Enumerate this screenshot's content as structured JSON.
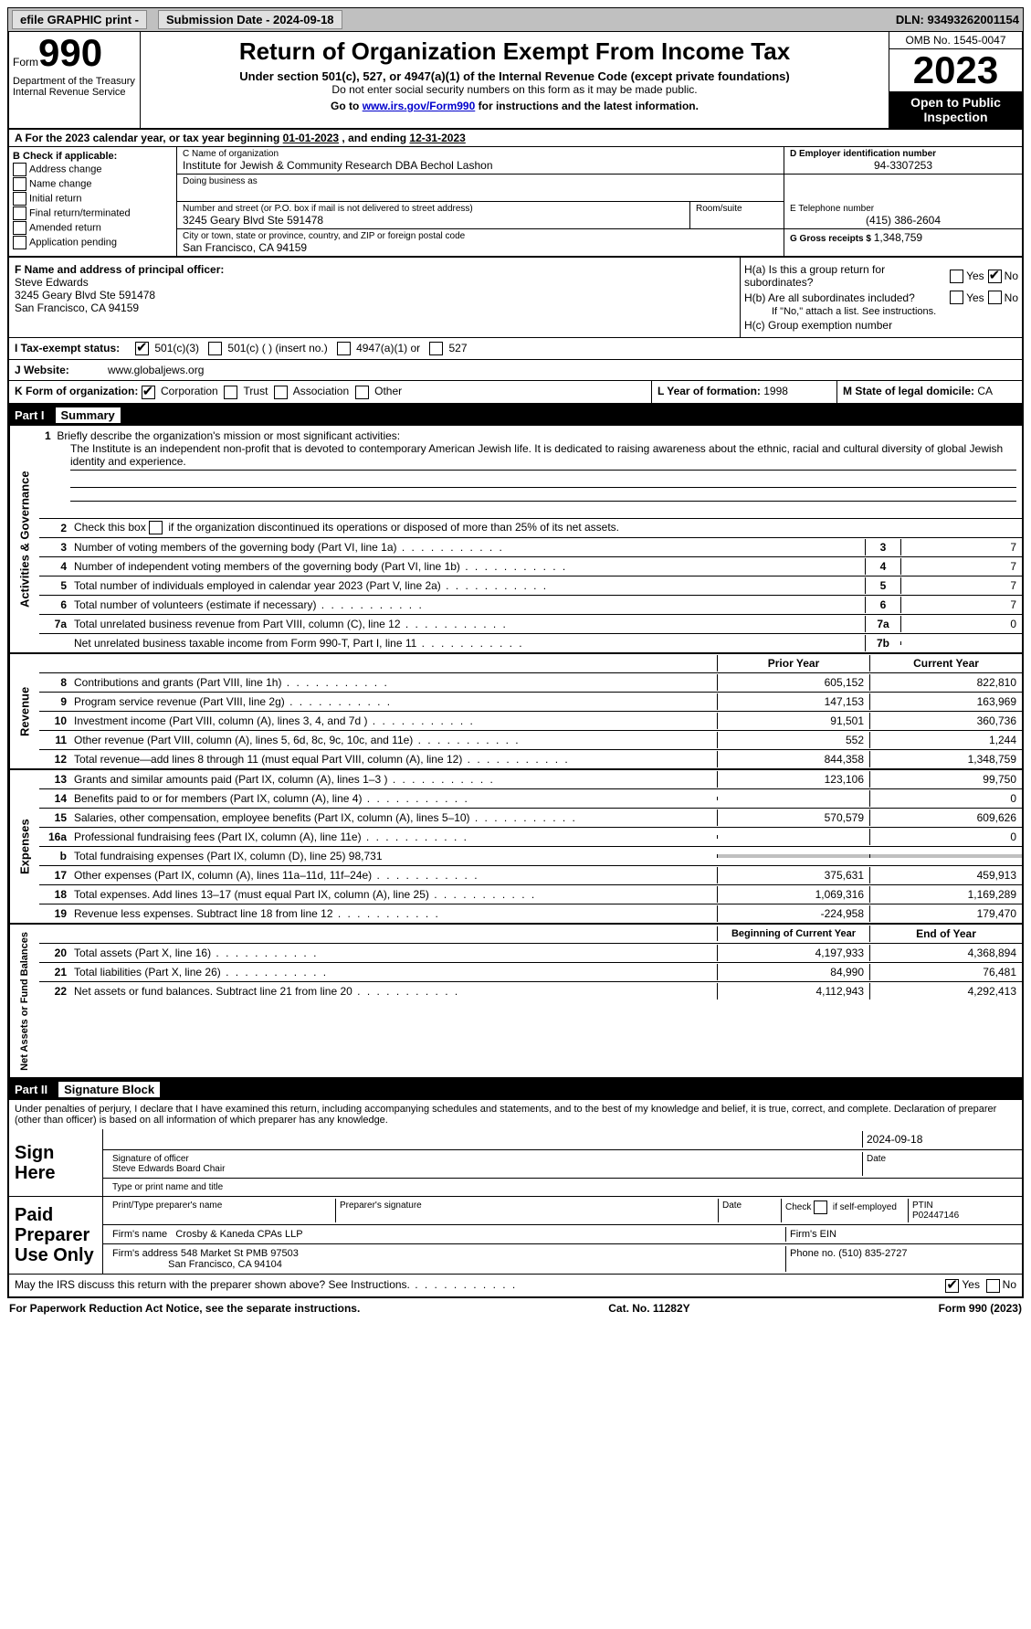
{
  "topbar": {
    "efile_label": "efile GRAPHIC print - ",
    "submission_label": "Submission Date - 2024-09-18",
    "dln_label": "DLN: 93493262001154"
  },
  "header": {
    "form_word": "Form",
    "form_number": "990",
    "title": "Return of Organization Exempt From Income Tax",
    "subtitle1": "Under section 501(c), 527, or 4947(a)(1) of the Internal Revenue Code (except private foundations)",
    "subtitle2": "Do not enter social security numbers on this form as it may be made public.",
    "subtitle3_pre": "Go to ",
    "subtitle3_link": "www.irs.gov/Form990",
    "subtitle3_post": " for instructions and the latest information.",
    "dept": "Department of the Treasury\nInternal Revenue Service",
    "omb": "OMB No. 1545-0047",
    "year": "2023",
    "open_inspection": "Open to Public Inspection"
  },
  "period": {
    "label_a": "A For the 2023 calendar year, or tax year beginning ",
    "begin": "01-01-2023",
    "mid": " , and ending ",
    "end": "12-31-2023"
  },
  "sectionB": {
    "header": "B Check if applicable:",
    "items": [
      "Address change",
      "Name change",
      "Initial return",
      "Final return/terminated",
      "Amended return",
      "Application pending"
    ]
  },
  "sectionC": {
    "label": "C Name of organization",
    "name": "Institute for Jewish & Community Research DBA Bechol Lashon",
    "dba_label": "Doing business as",
    "street_label": "Number and street (or P.O. box if mail is not delivered to street address)",
    "room_label": "Room/suite",
    "street": "3245 Geary Blvd Ste 591478",
    "city_label": "City or town, state or province, country, and ZIP or foreign postal code",
    "city": "San Francisco, CA  94159"
  },
  "sectionD": {
    "label": "D Employer identification number",
    "value": "94-3307253"
  },
  "sectionE": {
    "label": "E Telephone number",
    "value": "(415) 386-2604"
  },
  "sectionG": {
    "label": "G Gross receipts $ ",
    "value": "1,348,759"
  },
  "sectionF": {
    "label": "F Name and address of principal officer:",
    "name": "Steve Edwards",
    "street": "3245 Geary Blvd Ste 591478",
    "city": "San Francisco, CA  94159"
  },
  "sectionH": {
    "ha": "H(a)  Is this a group return for subordinates?",
    "hb": "H(b)  Are all subordinates included?",
    "hb_note": "If \"No,\" attach a list. See instructions.",
    "hc": "H(c)  Group exemption number ",
    "yes": "Yes",
    "no": "No"
  },
  "sectionI": {
    "label": "I   Tax-exempt status:",
    "o1": "501(c)(3)",
    "o2": "501(c) (  ) (insert no.)",
    "o3": "4947(a)(1) or",
    "o4": "527"
  },
  "sectionJ": {
    "label": "J   Website: ",
    "value": "www.globaljews.org"
  },
  "sectionK": {
    "label": "K Form of organization:",
    "o1": "Corporation",
    "o2": "Trust",
    "o3": "Association",
    "o4": "Other"
  },
  "sectionL": {
    "label": "L Year of formation: ",
    "value": "1998"
  },
  "sectionM": {
    "label": "M State of legal domicile: ",
    "value": "CA"
  },
  "part1": {
    "label": "Part I",
    "title": "Summary",
    "side_labels": [
      "Activities & Governance",
      "Revenue",
      "Expenses",
      "Net Assets or\nFund Balances"
    ],
    "line1_label": "1   Briefly describe the organization's mission or most significant activities:",
    "mission": "The Institute is an independent non-profit that is devoted to contemporary American Jewish life. It is dedicated to raising awareness about the ethnic, racial and cultural diversity of global Jewish identity and experience.",
    "line2": "Check this box        if the organization discontinued its operations or disposed of more than 25% of its net assets.",
    "rows_ag": [
      {
        "n": "3",
        "d": "Number of voting members of the governing body (Part VI, line 1a)",
        "box": "3",
        "v": "7"
      },
      {
        "n": "4",
        "d": "Number of independent voting members of the governing body (Part VI, line 1b)",
        "box": "4",
        "v": "7"
      },
      {
        "n": "5",
        "d": "Total number of individuals employed in calendar year 2023 (Part V, line 2a)",
        "box": "5",
        "v": "7"
      },
      {
        "n": "6",
        "d": "Total number of volunteers (estimate if necessary)",
        "box": "6",
        "v": "7"
      },
      {
        "n": "7a",
        "d": "Total unrelated business revenue from Part VIII, column (C), line 12",
        "box": "7a",
        "v": "0"
      },
      {
        "n": "",
        "d": "Net unrelated business taxable income from Form 990-T, Part I, line 11",
        "box": "7b",
        "v": ""
      }
    ],
    "col_prior": "Prior Year",
    "col_current": "Current Year",
    "rows_rev": [
      {
        "n": "8",
        "d": "Contributions and grants (Part VIII, line 1h)",
        "p": "605,152",
        "c": "822,810"
      },
      {
        "n": "9",
        "d": "Program service revenue (Part VIII, line 2g)",
        "p": "147,153",
        "c": "163,969"
      },
      {
        "n": "10",
        "d": "Investment income (Part VIII, column (A), lines 3, 4, and 7d )",
        "p": "91,501",
        "c": "360,736"
      },
      {
        "n": "11",
        "d": "Other revenue (Part VIII, column (A), lines 5, 6d, 8c, 9c, 10c, and 11e)",
        "p": "552",
        "c": "1,244"
      },
      {
        "n": "12",
        "d": "Total revenue—add lines 8 through 11 (must equal Part VIII, column (A), line 12)",
        "p": "844,358",
        "c": "1,348,759"
      }
    ],
    "rows_exp": [
      {
        "n": "13",
        "d": "Grants and similar amounts paid (Part IX, column (A), lines 1–3 )",
        "p": "123,106",
        "c": "99,750"
      },
      {
        "n": "14",
        "d": "Benefits paid to or for members (Part IX, column (A), line 4)",
        "p": "",
        "c": "0"
      },
      {
        "n": "15",
        "d": "Salaries, other compensation, employee benefits (Part IX, column (A), lines 5–10)",
        "p": "570,579",
        "c": "609,626"
      },
      {
        "n": "16a",
        "d": "Professional fundraising fees (Part IX, column (A), line 11e)",
        "p": "",
        "c": "0"
      },
      {
        "n": "b",
        "d": "Total fundraising expenses (Part IX, column (D), line 25) 98,731",
        "p": "grey",
        "c": "grey"
      },
      {
        "n": "17",
        "d": "Other expenses (Part IX, column (A), lines 11a–11d, 11f–24e)",
        "p": "375,631",
        "c": "459,913"
      },
      {
        "n": "18",
        "d": "Total expenses. Add lines 13–17 (must equal Part IX, column (A), line 25)",
        "p": "1,069,316",
        "c": "1,169,289"
      },
      {
        "n": "19",
        "d": "Revenue less expenses. Subtract line 18 from line 12",
        "p": "-224,958",
        "c": "179,470"
      }
    ],
    "col_begin": "Beginning of Current Year",
    "col_end": "End of Year",
    "rows_net": [
      {
        "n": "20",
        "d": "Total assets (Part X, line 16)",
        "p": "4,197,933",
        "c": "4,368,894"
      },
      {
        "n": "21",
        "d": "Total liabilities (Part X, line 26)",
        "p": "84,990",
        "c": "76,481"
      },
      {
        "n": "22",
        "d": "Net assets or fund balances. Subtract line 21 from line 20",
        "p": "4,112,943",
        "c": "4,292,413"
      }
    ]
  },
  "part2": {
    "label": "Part II",
    "title": "Signature Block",
    "perjury": "Under penalties of perjury, I declare that I have examined this return, including accompanying schedules and statements, and to the best of my knowledge and belief, it is true, correct, and complete. Declaration of preparer (other than officer) is based on all information of which preparer has any knowledge.",
    "sign_here": "Sign Here",
    "sig_officer": "Signature of officer",
    "sig_date_val": "2024-09-18",
    "sig_name": "Steve Edwards  Board Chair",
    "sig_name_label": "Type or print name and title",
    "date_label": "Date",
    "paid_label": "Paid Preparer Use Only",
    "prep_name_label": "Print/Type preparer's name",
    "prep_sig_label": "Preparer's signature",
    "check_if": "Check         if self-employed",
    "ptin_label": "PTIN",
    "ptin": "P02447146",
    "firm_name_label": "Firm's name   ",
    "firm_name": "Crosby & Kaneda CPAs LLP",
    "firm_ein_label": "Firm's EIN ",
    "firm_addr_label": "Firm's address ",
    "firm_addr1": "548 Market St PMB 97503",
    "firm_addr2": "San Francisco, CA  94104",
    "phone_label": "Phone no. ",
    "phone": "(510) 835-2727",
    "discuss": "May the IRS discuss this return with the preparer shown above? See Instructions.",
    "yes": "Yes",
    "no": "No"
  },
  "footer": {
    "left": "For Paperwork Reduction Act Notice, see the separate instructions.",
    "mid": "Cat. No. 11282Y",
    "right": "Form 990 (2023)"
  }
}
